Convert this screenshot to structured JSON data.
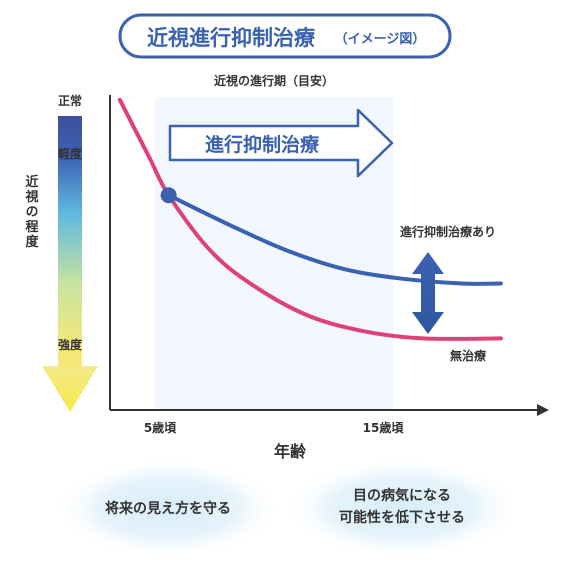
{
  "chart_data": {
    "type": "line",
    "title": "近視進行抑制治療",
    "title_note": "（イメージ図）",
    "period_label": "近視の進行期（目安）",
    "arrow_label": "進行抑制治療",
    "xlabel": "年齢",
    "x_ticks": [
      "5歳頃",
      "15歳頃"
    ],
    "ylabel": "近視の程度",
    "y_scale_labels": [
      "正常",
      "軽度",
      "強度"
    ],
    "series": [
      {
        "name": "進行抑制治療あり",
        "color": "#3a62b0",
        "x": [
          5,
          8,
          11,
          14,
          17,
          20,
          22
        ],
        "y": [
          0.3,
          0.42,
          0.53,
          0.61,
          0.65,
          0.67,
          0.67
        ]
      },
      {
        "name": "無治療",
        "color": "#e0407a",
        "x": [
          2.5,
          4,
          5,
          7,
          9,
          12,
          15,
          18,
          22
        ],
        "y": [
          -0.1,
          0.14,
          0.3,
          0.52,
          0.66,
          0.8,
          0.87,
          0.9,
          0.9
        ]
      }
    ],
    "start_point": {
      "x": 5,
      "y": 0.3
    },
    "xlim": [
      2,
      24
    ],
    "ylim": [
      -0.12,
      1.2
    ]
  },
  "colors": {
    "accent": "#3a62b0",
    "pink": "#e0407a",
    "period_band": "#f1f7fc"
  },
  "benefits": [
    "将来の見え方を守る",
    "目の病気になる\n可能性を低下させる"
  ]
}
